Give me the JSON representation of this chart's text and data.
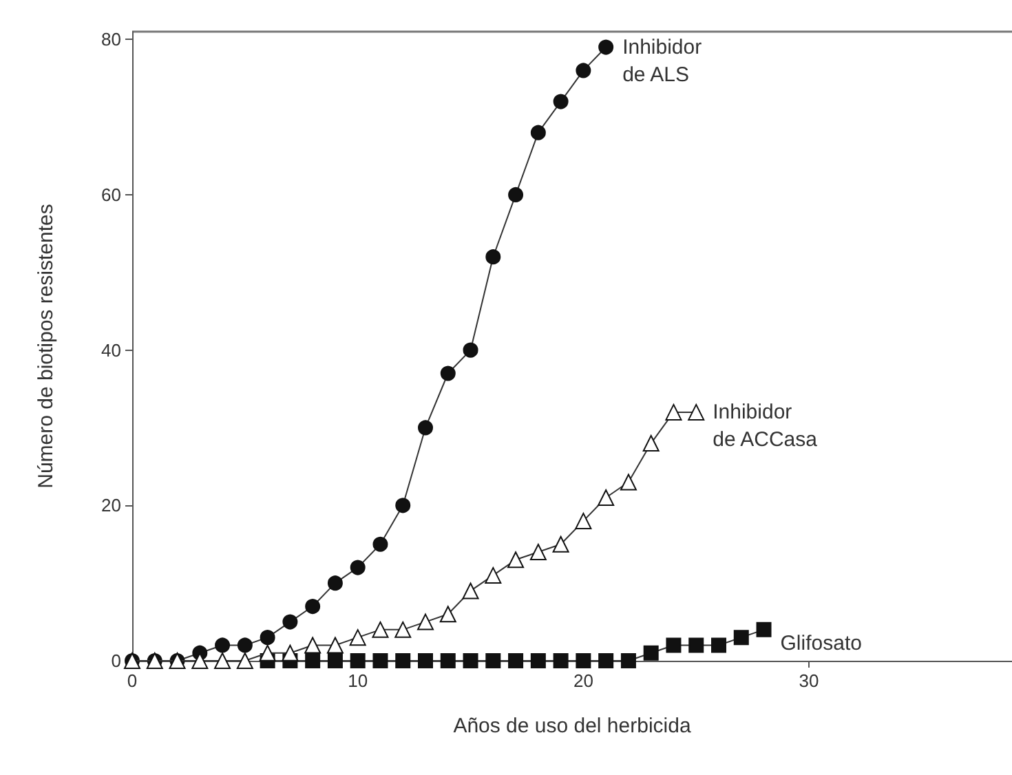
{
  "chart_data": {
    "type": "line",
    "xlabel": "Años de uso del herbicida",
    "ylabel": "Número de biotipos resistentes",
    "xlim": [
      0,
      39
    ],
    "ylim": [
      0,
      81
    ],
    "xticks": [
      0,
      10,
      20,
      30
    ],
    "yticks": [
      0,
      20,
      40,
      60,
      80
    ],
    "grid": false,
    "legend": false,
    "line_style": "solid",
    "series": [
      {
        "name": "Inhibidor\nde ALS",
        "color": "#111111",
        "marker": "circle",
        "x": [
          0,
          1,
          2,
          3,
          4,
          5,
          6,
          7,
          8,
          9,
          10,
          11,
          12,
          13,
          14,
          15,
          16,
          17,
          18,
          19,
          20,
          21
        ],
        "values": [
          0,
          0,
          0,
          1,
          2,
          2,
          3,
          5,
          7,
          10,
          12,
          15,
          20,
          30,
          37,
          40,
          52,
          60,
          68,
          72,
          76,
          79
        ]
      },
      {
        "name": "Inhibidor\nde ACCasa",
        "color": "#111111",
        "marker": "triangle",
        "x": [
          0,
          1,
          2,
          3,
          4,
          5,
          6,
          7,
          8,
          9,
          10,
          11,
          12,
          13,
          14,
          15,
          16,
          17,
          18,
          19,
          20,
          21,
          22,
          23,
          24,
          25
        ],
        "values": [
          0,
          0,
          0,
          0,
          0,
          0,
          1,
          1,
          2,
          2,
          3,
          4,
          4,
          5,
          6,
          9,
          11,
          13,
          14,
          15,
          18,
          21,
          23,
          28,
          32,
          32
        ]
      },
      {
        "name": "Glifosato",
        "color": "#111111",
        "marker": "square",
        "x": [
          6,
          7,
          8,
          9,
          10,
          11,
          12,
          13,
          14,
          15,
          16,
          17,
          18,
          19,
          20,
          21,
          22,
          23,
          24,
          25,
          26,
          27,
          28
        ],
        "values": [
          0,
          0,
          0,
          0,
          0,
          0,
          0,
          0,
          0,
          0,
          0,
          0,
          0,
          0,
          0,
          0,
          0,
          1,
          2,
          2,
          2,
          3,
          4
        ]
      }
    ]
  }
}
